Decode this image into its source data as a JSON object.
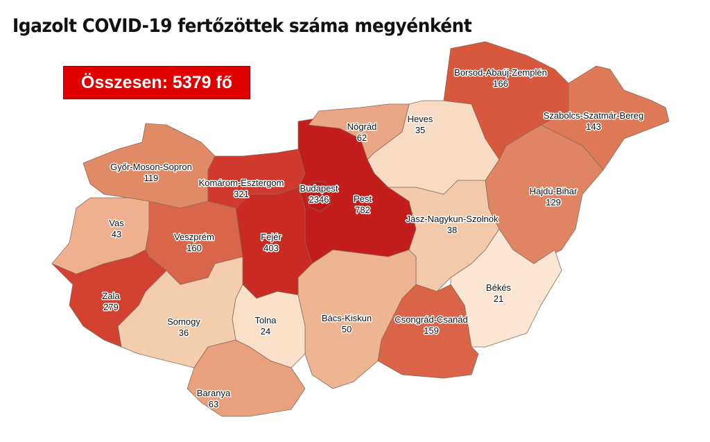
{
  "title": "Igazolt COVID-19 fertőzöttek száma megyénként",
  "total_label": "Összesen: 5379 fő",
  "colors": {
    "total_box": "#e00000"
  },
  "counties": [
    {
      "name": "Győr-Moson-Sopron",
      "value": "119",
      "color": "#e08a66"
    },
    {
      "name": "Vas",
      "value": "43",
      "color": "#eeb08e"
    },
    {
      "name": "Veszprém",
      "value": "160",
      "color": "#d9664a"
    },
    {
      "name": "Komárom-Esztergom",
      "value": "321",
      "color": "#d03a2c"
    },
    {
      "name": "Fejér",
      "value": "403",
      "color": "#c92a22"
    },
    {
      "name": "Pest",
      "value": "782",
      "color": "#c41e1c"
    },
    {
      "name": "Budapest",
      "value": "2346",
      "color": "#c01818"
    },
    {
      "name": "Nógrád",
      "value": "62",
      "color": "#eaa785"
    },
    {
      "name": "Heves",
      "value": "35",
      "color": "#f7dcc3"
    },
    {
      "name": "Borsod-Abaúj-Zemplén",
      "value": "166",
      "color": "#d8583e"
    },
    {
      "name": "Szabolcs-Szatmár-Bereg",
      "value": "143",
      "color": "#df7a58"
    },
    {
      "name": "Hajdú-Bihar",
      "value": "129",
      "color": "#e08563"
    },
    {
      "name": "Jász-Nagykun-Szolnok",
      "value": "38",
      "color": "#f3caa9"
    },
    {
      "name": "Békés",
      "value": "21",
      "color": "#fbe6d3"
    },
    {
      "name": "Csongrád-Csanád",
      "value": "159",
      "color": "#da6448"
    },
    {
      "name": "Bács-Kiskun",
      "value": "50",
      "color": "#eeb593"
    },
    {
      "name": "Tolna",
      "value": "24",
      "color": "#f9e0c8"
    },
    {
      "name": "Somogy",
      "value": "36",
      "color": "#f4cdad"
    },
    {
      "name": "Zala",
      "value": "279",
      "color": "#d2402f"
    },
    {
      "name": "Baranya",
      "value": "63",
      "color": "#e9a07c"
    }
  ]
}
